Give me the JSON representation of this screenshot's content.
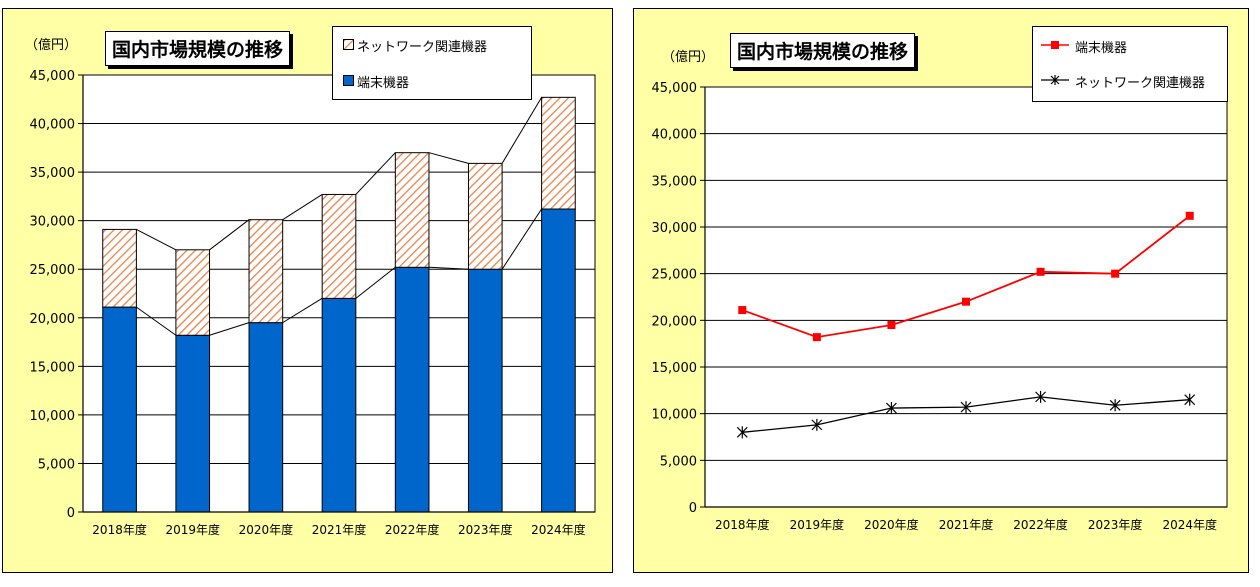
{
  "left_panel": {
    "title": "国内市場規模の推移",
    "unit": "（億円）",
    "legend": [
      "ネットワーク関連機器",
      "端末機器"
    ]
  },
  "right_panel": {
    "title": "国内市場規模の推移",
    "unit": "（億円）",
    "legend": [
      "端末機器",
      "ネットワーク関連機器"
    ]
  },
  "colors": {
    "panel_bg": "#ffffa6",
    "terminal_bar": "#0066cc",
    "network_hatch": "#e8834a",
    "terminal_line": "#ff0000",
    "network_line": "#000000"
  },
  "chart_data": [
    {
      "type": "bar",
      "stacked": true,
      "title": "国内市場規模の推移",
      "ylabel": "（億円）",
      "ylim": [
        0,
        45000
      ],
      "yticks": [
        "0",
        "5,000",
        "10,000",
        "15,000",
        "20,000",
        "25,000",
        "30,000",
        "35,000",
        "40,000",
        "45,000"
      ],
      "categories": [
        "2018年度",
        "2019年度",
        "2020年度",
        "2021年度",
        "2022年度",
        "2023年度",
        "2024年度"
      ],
      "series": [
        {
          "name": "端末機器",
          "values": [
            21100,
            18200,
            19500,
            22000,
            25200,
            25000,
            31200
          ]
        },
        {
          "name": "ネットワーク関連機器",
          "values": [
            8000,
            8800,
            10600,
            10700,
            11800,
            10900,
            11500
          ]
        }
      ],
      "legend_position": "top-right",
      "grid": true
    },
    {
      "type": "line",
      "title": "国内市場規模の推移",
      "ylabel": "（億円）",
      "ylim": [
        0,
        45000
      ],
      "yticks": [
        "0",
        "5,000",
        "10,000",
        "15,000",
        "20,000",
        "25,000",
        "30,000",
        "35,000",
        "40,000",
        "45,000"
      ],
      "categories": [
        "2018年度",
        "2019年度",
        "2020年度",
        "2021年度",
        "2022年度",
        "2023年度",
        "2024年度"
      ],
      "series": [
        {
          "name": "端末機器",
          "values": [
            21100,
            18200,
            19500,
            22000,
            25200,
            25000,
            31200
          ]
        },
        {
          "name": "ネットワーク関連機器",
          "values": [
            8000,
            8800,
            10600,
            10700,
            11800,
            10900,
            11500
          ]
        }
      ],
      "legend_position": "top-right",
      "grid": true
    }
  ]
}
